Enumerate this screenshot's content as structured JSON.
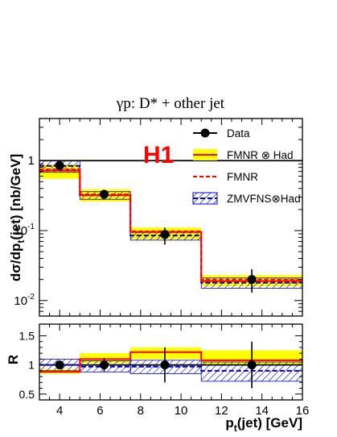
{
  "chart_data": [
    {
      "type": "step",
      "title": "γp:  D* + other jet",
      "experiment_label": "H1",
      "ylabel": "dσ/dp_t(jet)  [nb/GeV]",
      "ylabel_main": "dσ/dp",
      "ylabel_sub": "t",
      "ylabel_tail": "(jet)  [nb/GeV]",
      "yscale": "log",
      "ylim": [
        0.006,
        4.0
      ],
      "xlim": [
        3,
        16
      ],
      "y_tick_labels": [
        {
          "value": 1,
          "base": "1",
          "exp": ""
        },
        {
          "value": 0.1,
          "base": "10",
          "exp": "-1"
        },
        {
          "value": 0.01,
          "base": "10",
          "exp": "-2"
        }
      ],
      "bin_edges": [
        3,
        5,
        7.5,
        11,
        16
      ],
      "series": [
        {
          "name": "Data",
          "x": [
            4.0,
            6.2,
            9.2,
            13.5
          ],
          "values": [
            0.85,
            0.33,
            0.088,
            0.02
          ],
          "err_low": [
            0.13,
            0.05,
            0.025,
            0.007
          ],
          "err_high": [
            0.13,
            0.05,
            0.022,
            0.008
          ]
        },
        {
          "name": "FMNR ⊗ Had",
          "values": [
            0.72,
            0.32,
            0.095,
            0.019
          ],
          "band_low": [
            0.55,
            0.26,
            0.075,
            0.016
          ],
          "band_high": [
            0.88,
            0.39,
            0.11,
            0.023
          ]
        },
        {
          "name": "FMNR",
          "values": [
            0.75,
            0.33,
            0.098,
            0.02
          ]
        },
        {
          "name": "ZMVFNS⊗Had",
          "values": [
            0.84,
            0.32,
            0.085,
            0.018
          ],
          "band_low": [
            0.68,
            0.28,
            0.073,
            0.015
          ],
          "band_high": [
            1.0,
            0.36,
            0.095,
            0.021
          ]
        }
      ]
    },
    {
      "type": "step",
      "ylabel": "R",
      "xlabel": "p_t(jet) [GeV]",
      "xlabel_main": "p",
      "xlabel_sub": "t",
      "xlabel_tail": "(jet) [GeV]",
      "ylim": [
        0.4,
        1.7
      ],
      "xlim": [
        3,
        16
      ],
      "y_ticks": [
        0.5,
        1,
        1.5
      ],
      "y_tick_labels": [
        "0.5",
        "1",
        "1.5"
      ],
      "x_ticks": [
        4,
        6,
        8,
        10,
        12,
        14,
        16
      ],
      "x_tick_labels": [
        "4",
        "6",
        "8",
        "10",
        "12",
        "14",
        "16"
      ],
      "bin_edges": [
        3,
        5,
        7.5,
        11,
        16
      ],
      "series": [
        {
          "name": "Data",
          "x": [
            4.0,
            6.2,
            9.2,
            13.5
          ],
          "values": [
            1.0,
            1.0,
            1.0,
            1.0
          ],
          "err_low": [
            0.07,
            0.12,
            0.3,
            0.4
          ],
          "err_high": [
            0.07,
            0.12,
            0.3,
            0.4
          ]
        },
        {
          "name": "FMNR ⊗ Had",
          "values": [
            0.88,
            1.1,
            1.22,
            1.08
          ],
          "band_low": [
            0.85,
            1.03,
            1.1,
            1.0
          ],
          "band_high": [
            0.93,
            1.2,
            1.3,
            1.25
          ]
        },
        {
          "name": "ZMVFNS⊗Had",
          "values": [
            1.0,
            0.97,
            0.97,
            0.9
          ],
          "band_low": [
            0.9,
            0.88,
            0.85,
            0.72
          ],
          "band_high": [
            1.1,
            1.07,
            1.08,
            1.05
          ]
        }
      ]
    }
  ],
  "colors": {
    "data": "#000000",
    "fmnr_line": "#ff0000",
    "fmnr_band": "#ffff00",
    "zmvfns_band": "#0000cc",
    "experiment_label": "#ff0000"
  },
  "legend": {
    "placement": "top-right",
    "entries": [
      "Data",
      "FMNR ⊗ Had",
      "FMNR",
      "ZMVFNS⊗Had"
    ]
  }
}
